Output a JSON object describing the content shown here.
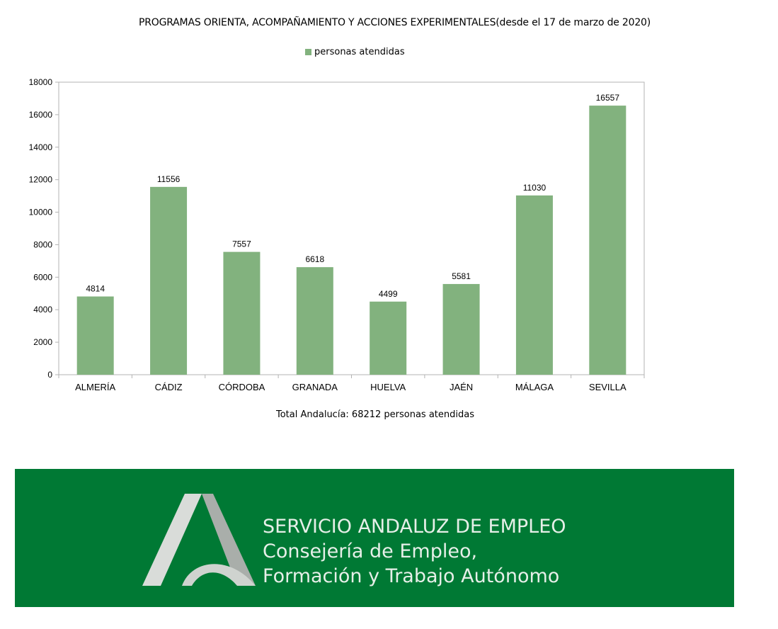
{
  "chart_data": {
    "type": "bar",
    "title": "PROGRAMAS ORIENTA, ACOMPAÑAMIENTO Y ACCIONES EXPERIMENTALES(desde el 17 de marzo de 2020)",
    "categories": [
      "ALMERÍA",
      "CÁDIZ",
      "CÓRDOBA",
      "GRANADA",
      "HUELVA",
      "JAÉN",
      "MÁLAGA",
      "SEVILLA"
    ],
    "series": [
      {
        "name": "personas atendidas",
        "values": [
          4814,
          11556,
          7557,
          6618,
          4499,
          5581,
          11030,
          16557
        ]
      }
    ],
    "ylim": [
      0,
      18000
    ],
    "yticks": [
      0,
      2000,
      4000,
      6000,
      8000,
      10000,
      12000,
      14000,
      16000,
      18000
    ],
    "grid": false,
    "legend": "top-center",
    "data_labels": true,
    "bar_color": "#82b27e"
  },
  "footnote": "Total Andalucía: 68212 personas atendidas",
  "banner": {
    "background": "#007934",
    "line1": "SERVICIO ANDALUZ DE EMPLEO",
    "line2": "Consejería de Empleo,",
    "line3": "Formación y Trabajo Autónomo",
    "logo_icon": "junta-andalucia-logo-icon"
  }
}
